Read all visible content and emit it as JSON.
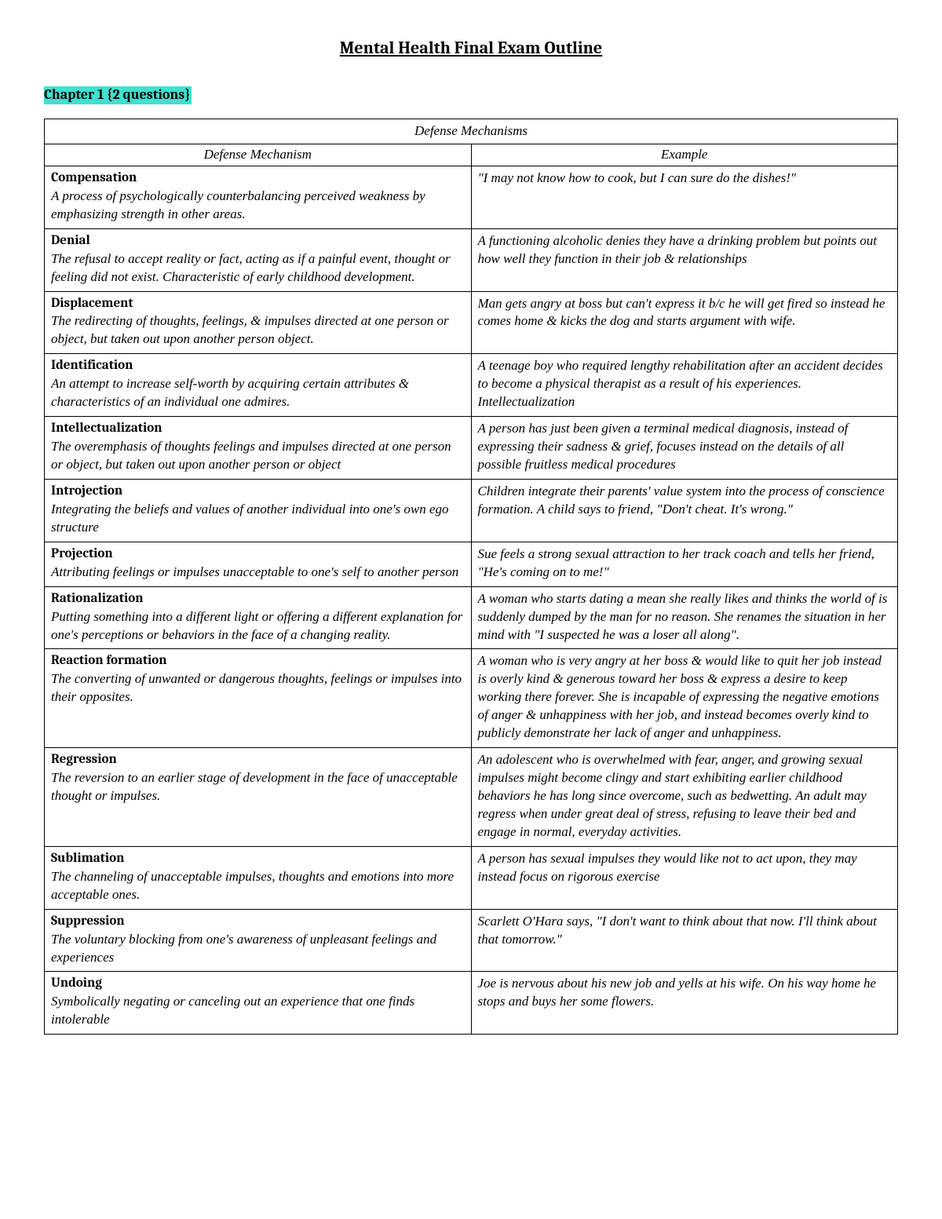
{
  "title": "Mental Health Final Exam Outline",
  "chapter_label": "Chapter 1 {2 questions}",
  "colors": {
    "highlight": "#40e0d0",
    "text": "#000000",
    "background": "#ffffff",
    "border": "#000000"
  },
  "table": {
    "caption": "Defense Mechanisms",
    "col_headers": [
      "Defense Mechanism",
      "Example"
    ],
    "col_widths_pct": [
      50,
      50
    ],
    "rows": [
      {
        "term": "Compensation",
        "definition": "A process of psychologically counterbalancing perceived weakness by emphasizing strength in other areas.",
        "example": "\"I may not know how to cook, but I can sure do the dishes!\""
      },
      {
        "term": "Denial",
        "definition": "The refusal to accept reality or fact, acting as if a painful event, thought or feeling did not exist. Characteristic of early childhood development.",
        "example": "A functioning alcoholic denies they have a drinking problem but points out how well they function in their job & relationships"
      },
      {
        "term": "Displacement",
        "definition": "The redirecting of thoughts, feelings, & impulses directed at one person or object, but taken out upon another person object.",
        "example": "Man gets angry at boss but can't express it b/c he will get fired so instead he comes home & kicks the dog and starts argument with wife."
      },
      {
        "term": "Identification",
        "definition": "An attempt to increase self-worth by acquiring certain attributes & characteristics of an individual one admires.",
        "example": "A teenage boy who required lengthy rehabilitation after an accident decides to become a physical therapist as a result of his experiences.",
        "example_extra": "Intellectualization"
      },
      {
        "term": "Intellectualization",
        "definition": "The overemphasis of thoughts feelings and impulses directed at one person or object, but taken out upon another person or object",
        "example": "A person has just been given a terminal medical diagnosis, instead of expressing their sadness & grief, focuses instead on the details of all possible fruitless medical procedures"
      },
      {
        "term": "Introjection",
        "definition": "Integrating the beliefs and values of another individual into one's own ego structure",
        "example": "Children integrate their parents' value system into the process of conscience formation. A child says to friend, \"Don't cheat. It's wrong.\""
      },
      {
        "term": "Projection",
        "definition": "Attributing feelings or impulses unacceptable to one's self to another person",
        "example": "Sue feels a strong sexual attraction to her track coach and tells her friend, \"He's coming on to me!\""
      },
      {
        "term": "Rationalization",
        "definition": "Putting something into a different light or offering a different explanation for one's perceptions or behaviors in the face of a changing reality.",
        "example": "A woman who starts dating a mean she really likes and thinks the world of is suddenly dumped by the man for no reason. She renames the situation in her mind with \"I suspected he was a loser all along\"."
      },
      {
        "term": "Reaction formation",
        "definition": "The converting of unwanted or dangerous thoughts, feelings or impulses into their opposites.",
        "example": "A woman who is very angry at her boss & would like to quit her job instead is overly kind & generous toward her boss & express a desire to keep working there forever. She is incapable of expressing the negative emotions of anger & unhappiness with her job, and instead becomes overly kind to publicly demonstrate her lack of anger and unhappiness."
      },
      {
        "term": "Regression",
        "definition": "The reversion to an earlier stage of development in the face of unacceptable thought or impulses.",
        "example": "An adolescent who is overwhelmed with fear, anger, and growing sexual impulses might become clingy and start exhibiting earlier childhood behaviors he has long since overcome, such as bedwetting. An adult may regress when under great deal of stress, refusing to leave their bed and engage in normal, everyday activities."
      },
      {
        "term": "Sublimation",
        "definition": "The channeling of unacceptable impulses, thoughts and emotions into more acceptable ones.",
        "example": "A person has sexual impulses they would like not to act upon, they may instead focus on rigorous exercise"
      },
      {
        "term": "Suppression",
        "definition": "The voluntary blocking from one's awareness of unpleasant feelings and experiences",
        "example": "Scarlett O'Hara says, \"I don't want to think about that now. I'll think about that tomorrow.\""
      },
      {
        "term": "Undoing",
        "definition": "Symbolically negating or canceling out an experience that one finds intolerable",
        "example": "Joe is nervous about his new job and yells at his wife. On his way home he stops and buys her some flowers."
      }
    ]
  },
  "typography": {
    "title_fontsize": 22,
    "body_fontsize": 17,
    "font_family": "Georgia / Cambria serif"
  }
}
